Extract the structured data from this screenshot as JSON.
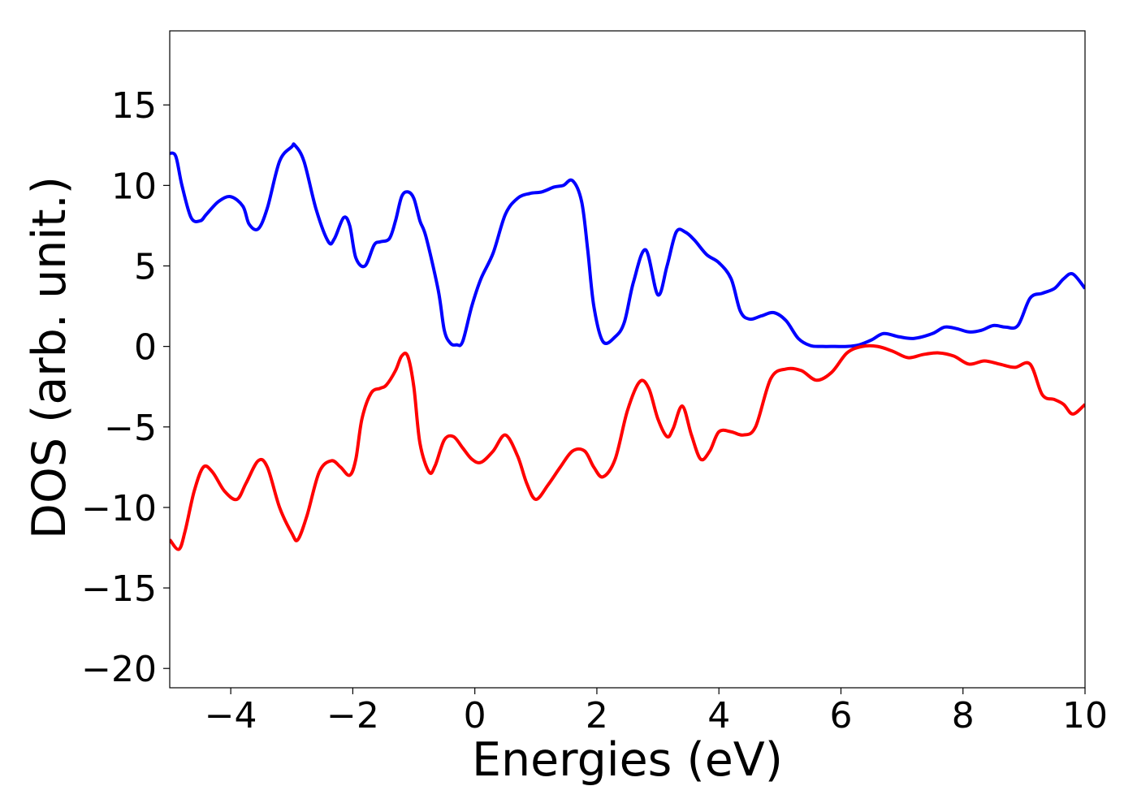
{
  "chart_data": {
    "type": "line",
    "title": "",
    "xlabel": "Energies (eV)",
    "ylabel": "DOS (arb. unit.)",
    "xlim": [
      -5,
      10
    ],
    "ylim": [
      -21.2,
      19.6
    ],
    "xticks": [
      -4,
      -2,
      0,
      2,
      4,
      6,
      8,
      10
    ],
    "xtick_labels": [
      "−4",
      "−2",
      "0",
      "2",
      "4",
      "6",
      "8",
      "10"
    ],
    "yticks": [
      15,
      10,
      5,
      0,
      -5,
      -10,
      -15,
      -20
    ],
    "ytick_labels": [
      "15",
      "10",
      "5",
      "0",
      "−5",
      "−10",
      "−15",
      "−20"
    ],
    "grid": false,
    "series": [
      {
        "color": "#0000ff",
        "x": [
          -5.0,
          -4.9,
          -4.8,
          -4.65,
          -4.5,
          -4.4,
          -4.2,
          -4.0,
          -3.8,
          -3.7,
          -3.55,
          -3.4,
          -3.2,
          -3.0,
          -2.95,
          -2.8,
          -2.6,
          -2.4,
          -2.3,
          -2.15,
          -2.05,
          -1.95,
          -1.8,
          -1.65,
          -1.55,
          -1.4,
          -1.3,
          -1.2,
          -1.1,
          -1.0,
          -0.9,
          -0.8,
          -0.6,
          -0.5,
          -0.4,
          -0.3,
          -0.2,
          -0.05,
          0.1,
          0.3,
          0.5,
          0.7,
          0.9,
          1.1,
          1.3,
          1.45,
          1.6,
          1.75,
          1.85,
          1.95,
          2.1,
          2.3,
          2.45,
          2.6,
          2.8,
          3.0,
          3.15,
          3.3,
          3.45,
          3.6,
          3.8,
          4.0,
          4.2,
          4.35,
          4.5,
          4.7,
          4.9,
          5.1,
          5.3,
          5.5,
          5.7,
          5.9,
          6.1,
          6.3,
          6.5,
          6.7,
          6.95,
          7.2,
          7.5,
          7.7,
          7.9,
          8.1,
          8.3,
          8.5,
          8.7,
          8.9,
          9.1,
          9.3,
          9.5,
          9.65,
          9.8,
          10.0
        ],
        "y": [
          12.0,
          11.8,
          10.0,
          8.0,
          7.8,
          8.2,
          9.0,
          9.3,
          8.7,
          7.6,
          7.3,
          8.6,
          11.5,
          12.4,
          12.5,
          11.5,
          8.5,
          6.5,
          6.7,
          8.0,
          7.5,
          5.5,
          5.0,
          6.3,
          6.5,
          6.7,
          7.8,
          9.3,
          9.6,
          9.2,
          7.8,
          6.8,
          3.5,
          1.0,
          0.2,
          0.1,
          0.3,
          2.5,
          4.2,
          5.8,
          8.2,
          9.2,
          9.5,
          9.6,
          9.9,
          10.0,
          10.3,
          9.0,
          6.0,
          2.5,
          0.3,
          0.6,
          1.5,
          4.0,
          6.0,
          3.2,
          5.0,
          7.1,
          7.1,
          6.6,
          5.7,
          5.2,
          4.2,
          2.2,
          1.7,
          1.9,
          2.1,
          1.6,
          0.5,
          0.05,
          0.0,
          0.0,
          0.0,
          0.1,
          0.4,
          0.8,
          0.6,
          0.5,
          0.8,
          1.2,
          1.1,
          0.9,
          1.0,
          1.3,
          1.2,
          1.3,
          3.0,
          3.3,
          3.6,
          4.2,
          4.5,
          3.6
        ]
      },
      {
        "color": "#ff0000",
        "x": [
          -5.0,
          -4.85,
          -4.75,
          -4.6,
          -4.45,
          -4.3,
          -4.1,
          -3.9,
          -3.75,
          -3.55,
          -3.4,
          -3.2,
          -3.0,
          -2.9,
          -2.75,
          -2.55,
          -2.35,
          -2.2,
          -2.05,
          -1.95,
          -1.85,
          -1.7,
          -1.55,
          -1.45,
          -1.3,
          -1.2,
          -1.1,
          -1.0,
          -0.9,
          -0.75,
          -0.65,
          -0.5,
          -0.35,
          -0.2,
          -0.05,
          0.1,
          0.3,
          0.5,
          0.7,
          0.85,
          1.0,
          1.2,
          1.4,
          1.6,
          1.8,
          1.95,
          2.1,
          2.3,
          2.5,
          2.7,
          2.85,
          3.0,
          3.15,
          3.25,
          3.4,
          3.55,
          3.7,
          3.85,
          4.0,
          4.2,
          4.4,
          4.6,
          4.85,
          5.1,
          5.35,
          5.6,
          5.85,
          6.1,
          6.35,
          6.6,
          6.85,
          7.1,
          7.35,
          7.6,
          7.85,
          8.1,
          8.35,
          8.6,
          8.85,
          9.1,
          9.3,
          9.5,
          9.65,
          9.8,
          10.0
        ],
        "y": [
          -12.0,
          -12.6,
          -11.5,
          -9.0,
          -7.5,
          -7.8,
          -9.0,
          -9.5,
          -8.5,
          -7.1,
          -7.5,
          -10.0,
          -11.6,
          -12.0,
          -10.5,
          -7.8,
          -7.1,
          -7.5,
          -8.0,
          -7.0,
          -4.5,
          -2.9,
          -2.6,
          -2.4,
          -1.5,
          -0.6,
          -0.6,
          -2.5,
          -6.0,
          -7.8,
          -7.4,
          -5.8,
          -5.6,
          -6.3,
          -7.0,
          -7.2,
          -6.5,
          -5.5,
          -6.8,
          -8.5,
          -9.5,
          -8.6,
          -7.5,
          -6.5,
          -6.5,
          -7.5,
          -8.1,
          -7.0,
          -4.0,
          -2.2,
          -2.6,
          -4.5,
          -5.6,
          -5.1,
          -3.7,
          -5.5,
          -7.0,
          -6.5,
          -5.3,
          -5.3,
          -5.5,
          -5.0,
          -2.0,
          -1.4,
          -1.5,
          -2.1,
          -1.6,
          -0.4,
          0.0,
          0.0,
          -0.3,
          -0.7,
          -0.5,
          -0.4,
          -0.6,
          -1.1,
          -0.9,
          -1.1,
          -1.3,
          -1.1,
          -3.0,
          -3.3,
          -3.6,
          -4.2,
          -3.6
        ]
      }
    ]
  }
}
